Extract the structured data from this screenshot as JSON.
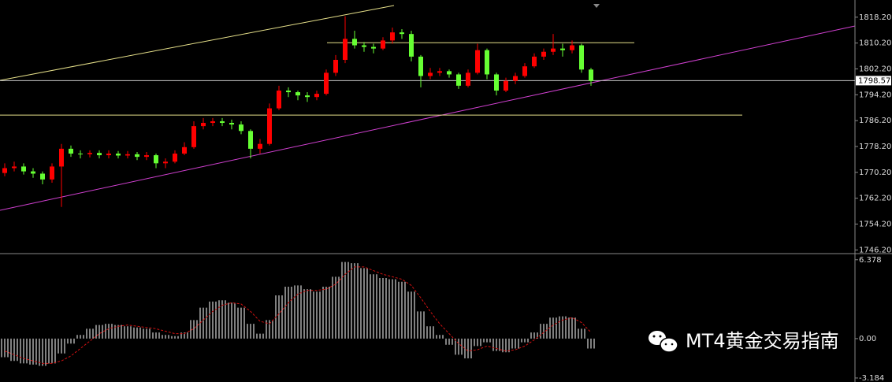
{
  "chart_data": [
    {
      "type": "candlestick",
      "open": [
        1770,
        1771.5,
        1772,
        1770.5,
        1769.8,
        1768,
        1772,
        1777.5,
        1776,
        1775.8,
        1776.2,
        1775.5,
        1776,
        1775.4,
        1775.8,
        1775,
        1775.5,
        1773,
        1773.5,
        1776,
        1778,
        1784.5,
        1785.5,
        1786,
        1785.5,
        1785,
        1783,
        1777.5,
        1779,
        1790,
        1795.5,
        1795,
        1794,
        1793.5,
        1794.5,
        1801,
        1805,
        1811.5,
        1809.5,
        1809,
        1808.5,
        1811,
        1813.5,
        1813,
        1806,
        1800,
        1801,
        1801.5,
        1800.5,
        1797,
        1801,
        1808,
        1800.5,
        1795.5,
        1798.5,
        1800,
        1803,
        1806,
        1807.5,
        1808.5,
        1808,
        1809.5,
        1802
      ],
      "high": [
        1773,
        1773.5,
        1773,
        1771.5,
        1770.5,
        1773,
        1779,
        1778.5,
        1777,
        1777,
        1777,
        1777,
        1776.8,
        1776.8,
        1776.5,
        1776.5,
        1776,
        1774.5,
        1777,
        1779.5,
        1786,
        1787,
        1787,
        1787,
        1786.5,
        1786,
        1783.5,
        1780.5,
        1791.5,
        1797,
        1796.5,
        1795.5,
        1795,
        1795.5,
        1802,
        1806.5,
        1818.5,
        1814,
        1810.5,
        1810,
        1812,
        1815,
        1814.5,
        1814,
        1806.5,
        1802.5,
        1802.5,
        1802,
        1801,
        1802,
        1810,
        1808.5,
        1801,
        1799.5,
        1801,
        1804,
        1807,
        1808.5,
        1813,
        1810,
        1811,
        1810,
        1802.5
      ],
      "low": [
        1769,
        1770.5,
        1769.5,
        1768.5,
        1766.5,
        1767,
        1759.5,
        1775,
        1774.5,
        1774.8,
        1774.5,
        1774.5,
        1774.5,
        1774.5,
        1774,
        1774,
        1771.5,
        1771.5,
        1773,
        1775.5,
        1777.5,
        1783.5,
        1784.5,
        1784.5,
        1783.5,
        1782,
        1774.5,
        1776,
        1778.5,
        1789.5,
        1793.5,
        1792.5,
        1792,
        1792.5,
        1794,
        1800,
        1804,
        1808.5,
        1807.5,
        1807,
        1808,
        1810,
        1811.5,
        1804.5,
        1796.5,
        1799,
        1800,
        1799.5,
        1796,
        1796.5,
        1800.5,
        1799,
        1794,
        1795,
        1797.5,
        1799.5,
        1802.5,
        1805,
        1806.5,
        1806,
        1807,
        1801,
        1797
      ],
      "close": [
        1771.5,
        1772,
        1770.5,
        1769.8,
        1768,
        1772,
        1777.5,
        1776,
        1775.8,
        1776.2,
        1775.5,
        1776,
        1775.4,
        1775.8,
        1775,
        1775.5,
        1773,
        1773.5,
        1776,
        1778,
        1784.5,
        1785.5,
        1786,
        1785.5,
        1785,
        1783,
        1777.5,
        1779,
        1790,
        1795.5,
        1795,
        1794,
        1793.5,
        1794.5,
        1801,
        1805,
        1811.5,
        1809.5,
        1809,
        1808.5,
        1811,
        1813.5,
        1813,
        1806,
        1800,
        1801,
        1801.5,
        1800.5,
        1797,
        1801,
        1808,
        1800.5,
        1795.5,
        1798.5,
        1800,
        1803,
        1806,
        1807.5,
        1808.5,
        1808,
        1809.5,
        1802,
        1798.5
      ],
      "up_color": "#ff0000",
      "down_color": "#66ff33",
      "ylim": [
        1745.3,
        1822.3
      ],
      "yticks": [
        {
          "value": 1818.2,
          "label": "1818.20"
        },
        {
          "value": 1810.2,
          "label": "1810.20"
        },
        {
          "value": 1802.2,
          "label": "1802.20"
        },
        {
          "value": 1794.2,
          "label": "1794.20"
        },
        {
          "value": 1786.2,
          "label": "1786.20"
        },
        {
          "value": 1778.2,
          "label": "1778.20"
        },
        {
          "value": 1770.2,
          "label": "1770.20"
        },
        {
          "value": 1762.2,
          "label": "1762.20"
        },
        {
          "value": 1754.2,
          "label": "1754.20"
        },
        {
          "value": 1746.2,
          "label": "1746.20"
        }
      ],
      "current_price": 1798.57,
      "levels": [
        1810.3,
        1787.9
      ],
      "level_color": "#e6e08a"
    },
    {
      "type": "macd",
      "values": [
        -1.5,
        -1.8,
        -2.0,
        -2.1,
        -2.2,
        -2.0,
        -1.2,
        -0.4,
        0.3,
        0.8,
        1.1,
        1.2,
        1.1,
        1.0,
        0.9,
        0.8,
        0.5,
        0.3,
        0.2,
        0.5,
        1.5,
        2.5,
        3.0,
        3.1,
        2.9,
        2.5,
        1.2,
        0.4,
        1.5,
        3.5,
        4.2,
        4.3,
        4.0,
        3.8,
        4.2,
        5.0,
        6.2,
        6.1,
        5.7,
        5.2,
        4.9,
        4.8,
        4.6,
        3.8,
        2.2,
        1.0,
        0.3,
        -0.5,
        -1.3,
        -1.6,
        -0.6,
        -0.3,
        -1.0,
        -1.1,
        -0.8,
        -0.3,
        0.5,
        1.2,
        1.7,
        1.8,
        1.7,
        0.8,
        -0.8
      ],
      "signal": [
        -1.0,
        -1.3,
        -1.6,
        -1.8,
        -2.0,
        -2.0,
        -1.8,
        -1.4,
        -0.8,
        -0.2,
        0.4,
        0.8,
        1.0,
        1.1,
        1.0,
        0.9,
        0.8,
        0.6,
        0.4,
        0.4,
        0.8,
        1.5,
        2.2,
        2.7,
        2.9,
        2.8,
        2.2,
        1.4,
        1.2,
        2.0,
        2.9,
        3.6,
        3.9,
        3.9,
        4.0,
        4.4,
        5.2,
        5.8,
        5.8,
        5.5,
        5.2,
        5.0,
        4.8,
        4.3,
        3.3,
        2.2,
        1.2,
        0.4,
        -0.4,
        -1.0,
        -0.9,
        -0.6,
        -0.8,
        -1.0,
        -0.9,
        -0.6,
        -0.1,
        0.5,
        1.1,
        1.5,
        1.7,
        1.3,
        0.5
      ],
      "color": "#ffffff",
      "signal_color": "#d01010",
      "ylim": [
        -3.38,
        6.81
      ],
      "yticks": [
        6.378,
        {
          "value": 0,
          "label": "0.00"
        },
        -3.184
      ]
    }
  ],
  "watermark": "MT4黄金交易指南"
}
